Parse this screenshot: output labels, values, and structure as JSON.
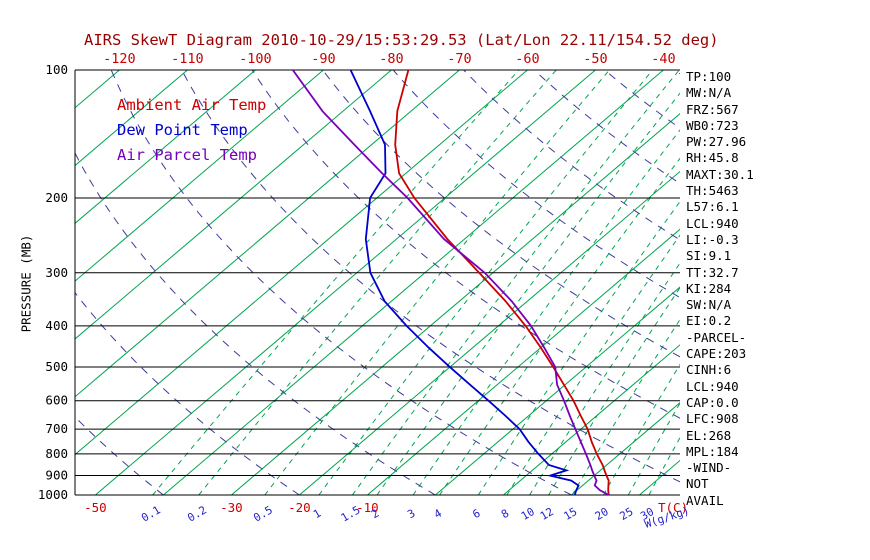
{
  "title": "AIRS SkewT Diagram 2010-10-29/15:53:29.53 (Lat/Lon 22.11/154.52 deg)",
  "colors": {
    "title": "#990000",
    "temp_axis": "#cc0000",
    "mixing_axis": "#2222cc",
    "isotherm": "#00a550",
    "mixing_line": "#00a550",
    "adiabat": "#3c3c9e",
    "pressure_line": "#000000"
  },
  "legend": {
    "items": [
      {
        "label": "Ambient Air Temp",
        "color": "#cc0000"
      },
      {
        "label": "Dew Point Temp",
        "color": "#0000cd"
      },
      {
        "label": "Air Parcel Temp",
        "color": "#7700bb"
      }
    ]
  },
  "axes": {
    "pressure_label": "PRESSURE (MB)",
    "pressure_ticks": [
      100,
      200,
      300,
      400,
      500,
      600,
      700,
      800,
      900,
      1000
    ],
    "top_temp_ticks": [
      -120,
      -110,
      -100,
      -90,
      -80,
      -70,
      -60,
      -50,
      -40
    ],
    "bottom_temp_ticks": [
      -50,
      -30,
      -20,
      -10
    ],
    "temp_unit_label": "T(C)",
    "mixing_unit_label": "W(g/kg)"
  },
  "stats": {
    "lines": [
      "TP:100",
      "MW:N/A",
      "FRZ:567",
      "WB0:723",
      "PW:27.96",
      "RH:45.8",
      "MAXT:30.1",
      "TH:5463",
      "L57:6.1",
      "LCL:940",
      "LI:-0.3",
      "SI:9.1",
      "TT:32.7",
      "KI:284",
      "SW:N/A",
      "EI:0.2",
      "-PARCEL-",
      "CAPE:203",
      "CINH:6",
      "LCL:940",
      "CAP:0.0",
      "LFC:908",
      "EL:268",
      "MPL:184",
      "-WIND-",
      "NOT",
      "AVAIL"
    ]
  },
  "chart_data": {
    "type": "line",
    "subtype": "skewt",
    "pressure_range_mb": [
      100,
      1000
    ],
    "temp_at_1000mb_range_c": [
      -53,
      36
    ],
    "pressure_mb": [
      1000,
      975,
      950,
      925,
      900,
      875,
      850,
      800,
      750,
      700,
      650,
      600,
      550,
      500,
      450,
      400,
      350,
      300,
      250,
      200,
      175,
      150,
      125,
      100
    ],
    "series": [
      {
        "name": "Ambient Air Temp",
        "color": "#cc0000",
        "temps_c": [
          25.5,
          24.6,
          23.8,
          23.0,
          21.8,
          20.6,
          19.4,
          16.6,
          13.8,
          11.0,
          7.6,
          4.0,
          -0.2,
          -4.8,
          -10.0,
          -16.0,
          -23.2,
          -32.0,
          -42.5,
          -54.5,
          -61.0,
          -66.5,
          -72.0,
          -77.5
        ]
      },
      {
        "name": "Dew Point Temp",
        "color": "#0000cd",
        "temps_c": [
          20.5,
          19.9,
          19.4,
          17.5,
          13.5,
          15.0,
          11.5,
          8.0,
          4.5,
          1.0,
          -3.5,
          -8.5,
          -14.0,
          -20.0,
          -26.5,
          -33.5,
          -41.0,
          -48.0,
          -54.5,
          -61.0,
          -63.0,
          -68.0,
          -76.0,
          -86.0
        ]
      },
      {
        "name": "Air Parcel Temp",
        "color": "#7700bb",
        "temps_c": [
          25.5,
          23.4,
          21.8,
          21.2,
          20.0,
          18.8,
          17.6,
          15.0,
          12.2,
          9.2,
          6.0,
          2.6,
          -1.2,
          -4.5,
          -9.5,
          -15.2,
          -22.3,
          -31.2,
          -43.0,
          -55.5,
          -63.5,
          -72.5,
          -83.0,
          -94.5
        ]
      }
    ],
    "isotherms_c": {
      "min": -120,
      "max": 40,
      "step": 10
    },
    "mixing_ratio_gkg": [
      0.1,
      0.2,
      0.5,
      1,
      1.5,
      2,
      3,
      4,
      6,
      8,
      10,
      12,
      15,
      20,
      25,
      30
    ],
    "dry_adiabats_theta_c": {
      "min": -40,
      "max": 180,
      "step": 20
    }
  }
}
